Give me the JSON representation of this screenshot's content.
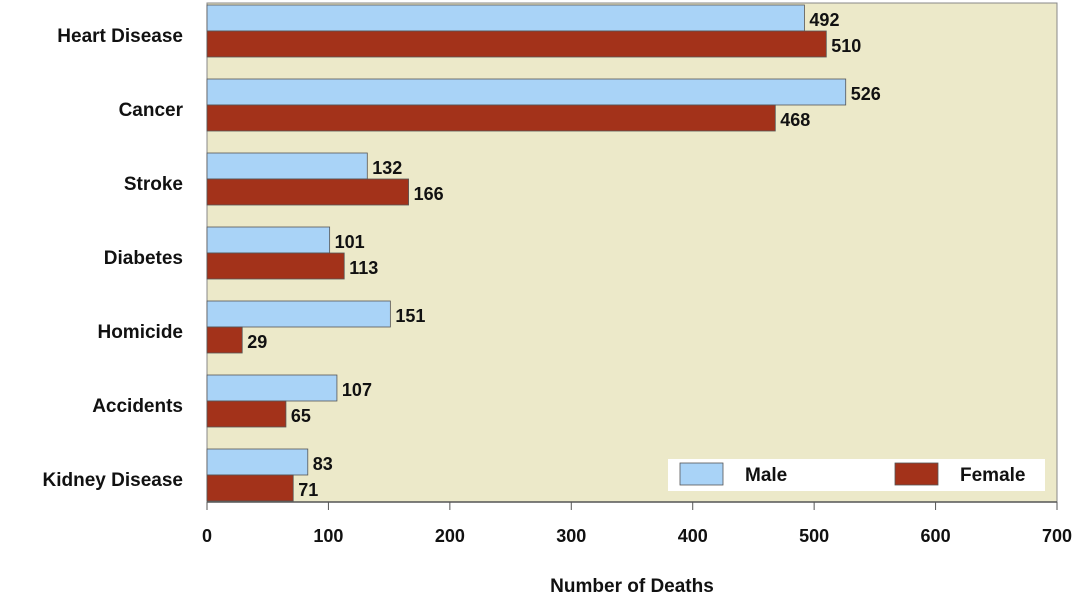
{
  "chart_data": {
    "type": "bar",
    "orientation": "horizontal",
    "x_label": "Number of Deaths",
    "categories": [
      "Heart Disease",
      "Cancer",
      "Stroke",
      "Diabetes",
      "Homicide",
      "Accidents",
      "Kidney Disease"
    ],
    "series": [
      {
        "name": "Male",
        "color": "#a9d3f7",
        "values": [
          492,
          526,
          132,
          101,
          151,
          107,
          83
        ]
      },
      {
        "name": "Female",
        "color": "#a3321a",
        "values": [
          510,
          468,
          166,
          113,
          29,
          65,
          71
        ]
      }
    ],
    "xlim": [
      0,
      700
    ],
    "xticks": [
      0,
      100,
      200,
      300,
      400,
      500,
      600,
      700
    ],
    "legend": "lower right"
  }
}
